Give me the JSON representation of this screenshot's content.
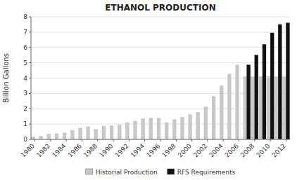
{
  "chart_data": {
    "type": "bar",
    "title": "ETHANOL PRODUCTION",
    "y_label": "Billion Gallons",
    "categories": [
      "1980",
      null,
      "1982",
      null,
      "1984",
      null,
      "1986",
      null,
      "1988",
      null,
      "1990",
      null,
      "1992",
      null,
      "1994",
      null,
      "1996",
      null,
      "1998",
      null,
      "2000",
      null,
      "2002",
      null,
      "2004",
      null,
      "2006",
      null,
      "2008",
      null,
      "2010",
      null,
      "2012"
    ],
    "series": [
      {
        "name": "Historial Production",
        "color": "#c8c8c8",
        "values": [
          0.175,
          0.215,
          0.35,
          0.375,
          0.43,
          0.6,
          0.75,
          0.84,
          0.65,
          0.87,
          0.9,
          0.95,
          1.1,
          1.2,
          1.35,
          1.4,
          1.4,
          1.1,
          1.3,
          1.45,
          1.63,
          1.77,
          2.13,
          2.81,
          3.5,
          4.26,
          4.86,
          4.1,
          4.1,
          4.1,
          4.1,
          4.1,
          4.1
        ]
      },
      {
        "name": "RFS Requirements",
        "color": "#111111",
        "values": [
          0,
          0,
          0,
          0,
          0,
          0,
          0,
          0,
          0,
          0,
          0,
          0,
          0,
          0,
          0,
          0,
          0,
          0,
          0,
          0,
          0,
          0,
          0,
          0,
          0,
          0,
          0,
          4.86,
          5.5,
          6.2,
          6.95,
          7.5,
          7.6
        ]
      }
    ],
    "ylim": [
      0,
      8
    ],
    "yticks": [
      0,
      1,
      2,
      3,
      4,
      5,
      6,
      7,
      8
    ],
    "grid": true,
    "legend": "bottom"
  }
}
